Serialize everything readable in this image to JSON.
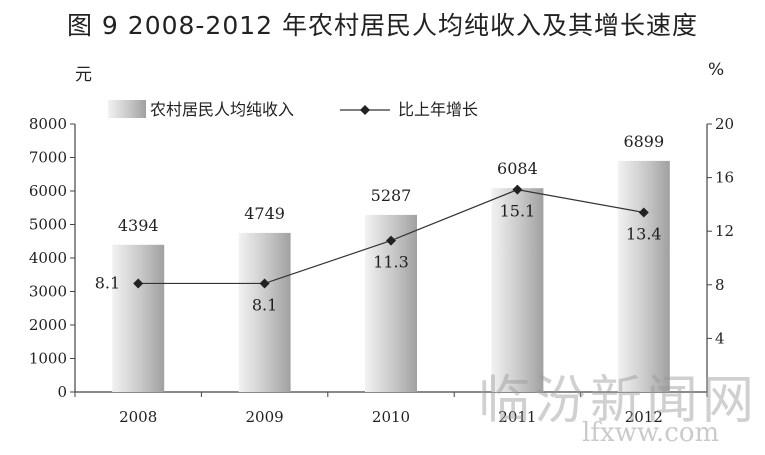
{
  "title": "图 9  2008-2012 年农村居民人均纯收入及其增长速度",
  "left_unit": "元",
  "right_unit": "%",
  "watermark": {
    "main": "临汾新闻网",
    "sub": "lfxww.com"
  },
  "chart_data": {
    "type": "bar+line",
    "categories": [
      "2008",
      "2009",
      "2010",
      "2011",
      "2012"
    ],
    "series": [
      {
        "name": "农村居民人均纯收入",
        "type": "bar",
        "axis": "left",
        "values": [
          4394,
          4749,
          5287,
          6084,
          6899
        ],
        "labels": [
          "4394",
          "4749",
          "5287",
          "6084",
          "6899"
        ]
      },
      {
        "name": "比上年增长",
        "type": "line",
        "axis": "right",
        "values": [
          8.1,
          8.1,
          11.3,
          15.1,
          13.4
        ],
        "labels": [
          "8.1",
          "8.1",
          "11.3",
          "15.1",
          "13.4"
        ]
      }
    ],
    "y_left": {
      "range": [
        0,
        8000
      ],
      "ticks": [
        "0",
        "1000",
        "2000",
        "3000",
        "4000",
        "5000",
        "6000",
        "7000",
        "8000"
      ]
    },
    "y_right": {
      "range": [
        0,
        20
      ],
      "ticks": [
        "4",
        "8",
        "12",
        "16",
        "20"
      ]
    },
    "legend_position": "top-left",
    "colors": {
      "bar_light": "#ececec",
      "bar_dark": "#a8a8a8",
      "line": "#333333",
      "marker": "#222222"
    }
  }
}
